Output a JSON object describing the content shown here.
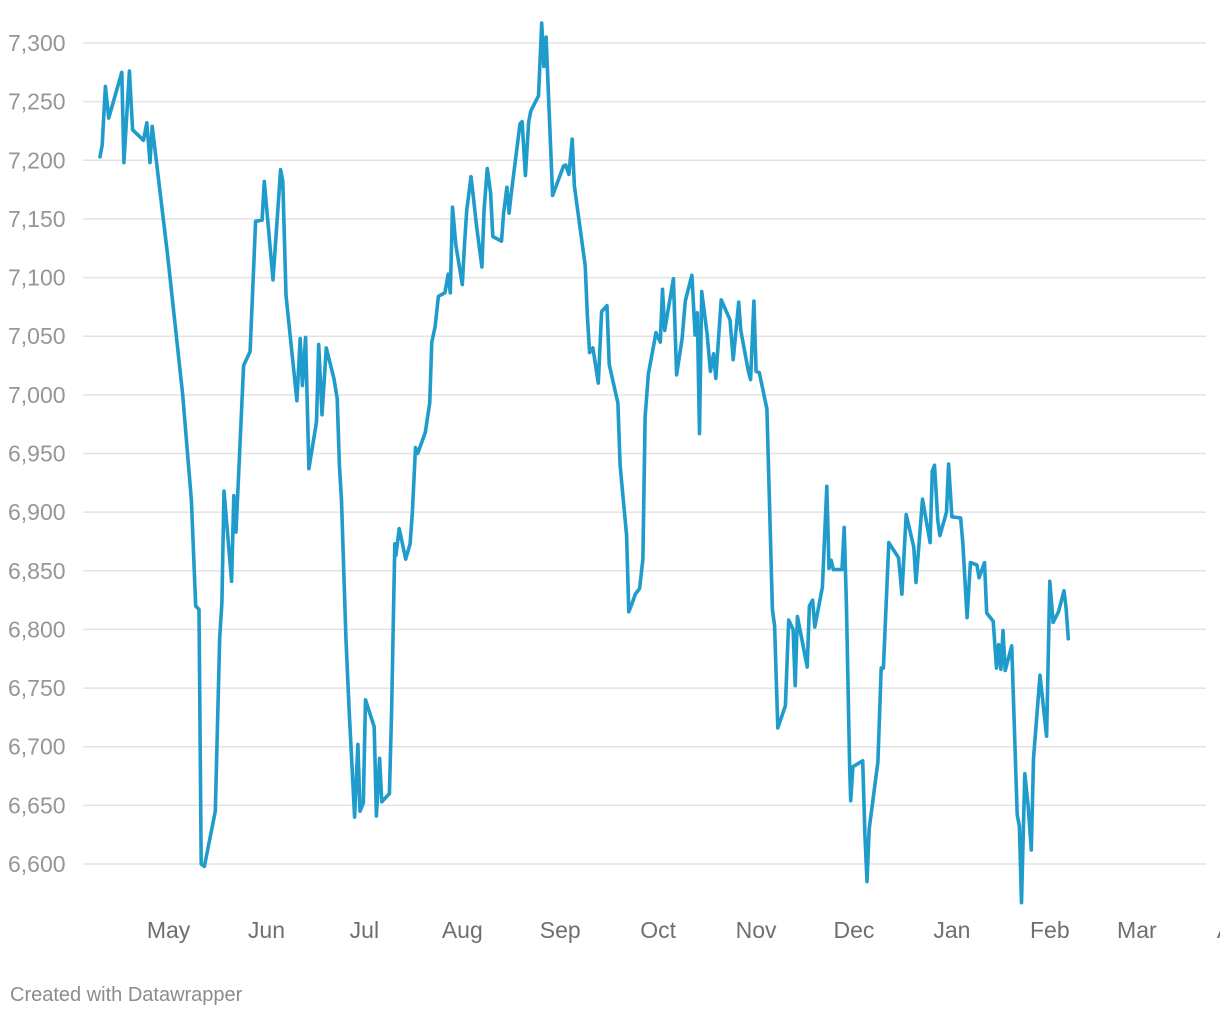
{
  "credit": "Created with Datawrapper",
  "colors": {
    "line": "#1f9ccb",
    "grid": "#e3e3e3",
    "tick_text": "#969696",
    "month_text": "#6f6f6f"
  },
  "chart_data": {
    "type": "line",
    "title": "",
    "xlabel": "",
    "ylabel": "",
    "ylim": [
      6570,
      7320
    ],
    "grid": true,
    "y_ticks": [
      {
        "value": 7300,
        "label": "7,300"
      },
      {
        "value": 7250,
        "label": "7,250"
      },
      {
        "value": 7200,
        "label": "7,200"
      },
      {
        "value": 7150,
        "label": "7,150"
      },
      {
        "value": 7100,
        "label": "7,100"
      },
      {
        "value": 7050,
        "label": "7,050"
      },
      {
        "value": 7000,
        "label": "7,000"
      },
      {
        "value": 6950,
        "label": "6,950"
      },
      {
        "value": 6900,
        "label": "6,900"
      },
      {
        "value": 6850,
        "label": "6,850"
      },
      {
        "value": 6800,
        "label": "6,800"
      },
      {
        "value": 6750,
        "label": "6,750"
      },
      {
        "value": 6700,
        "label": "6,700"
      },
      {
        "value": 6650,
        "label": "6,650"
      },
      {
        "value": 6600,
        "label": "6,600"
      }
    ],
    "x_ticks": [
      {
        "label": "May",
        "pos": 0.063
      },
      {
        "label": "Jun",
        "pos": 0.153
      },
      {
        "label": "Jul",
        "pos": 0.243
      },
      {
        "label": "Aug",
        "pos": 0.333
      },
      {
        "label": "Sep",
        "pos": 0.423
      },
      {
        "label": "Oct",
        "pos": 0.513
      },
      {
        "label": "Nov",
        "pos": 0.603
      },
      {
        "label": "Dec",
        "pos": 0.693
      },
      {
        "label": "Jan",
        "pos": 0.783
      },
      {
        "label": "Feb",
        "pos": 0.873
      },
      {
        "label": "Mar",
        "pos": 0.953
      },
      {
        "label": "Apr",
        "pos": 1.043
      }
    ],
    "series": [
      {
        "points": [
          [
            0.0,
            7203
          ],
          [
            0.002,
            7213
          ],
          [
            0.005,
            7263
          ],
          [
            0.008,
            7236
          ],
          [
            0.02,
            7275
          ],
          [
            0.022,
            7198
          ],
          [
            0.027,
            7276
          ],
          [
            0.03,
            7226
          ],
          [
            0.04,
            7217
          ],
          [
            0.043,
            7232
          ],
          [
            0.046,
            7198
          ],
          [
            0.048,
            7229
          ],
          [
            0.062,
            7120
          ],
          [
            0.076,
            7000
          ],
          [
            0.084,
            6910
          ],
          [
            0.088,
            6820
          ],
          [
            0.091,
            6817
          ],
          [
            0.093,
            6600
          ],
          [
            0.096,
            6598
          ],
          [
            0.106,
            6645
          ],
          [
            0.11,
            6793
          ],
          [
            0.112,
            6823
          ],
          [
            0.114,
            6918
          ],
          [
            0.121,
            6841
          ],
          [
            0.123,
            6914
          ],
          [
            0.125,
            6883
          ],
          [
            0.132,
            7025
          ],
          [
            0.138,
            7037
          ],
          [
            0.143,
            7148
          ],
          [
            0.149,
            7149
          ],
          [
            0.151,
            7182
          ],
          [
            0.159,
            7098
          ],
          [
            0.166,
            7192
          ],
          [
            0.168,
            7182
          ],
          [
            0.171,
            7085
          ],
          [
            0.181,
            6995
          ],
          [
            0.184,
            7048
          ],
          [
            0.186,
            7008
          ],
          [
            0.189,
            7049
          ],
          [
            0.192,
            6937
          ],
          [
            0.199,
            6977
          ],
          [
            0.201,
            7043
          ],
          [
            0.204,
            6983
          ],
          [
            0.208,
            7040
          ],
          [
            0.215,
            7014
          ],
          [
            0.218,
            6997
          ],
          [
            0.22,
            6940
          ],
          [
            0.222,
            6910
          ],
          [
            0.226,
            6793
          ],
          [
            0.229,
            6730
          ],
          [
            0.234,
            6640
          ],
          [
            0.237,
            6702
          ],
          [
            0.239,
            6645
          ],
          [
            0.242,
            6652
          ],
          [
            0.244,
            6740
          ],
          [
            0.252,
            6717
          ],
          [
            0.254,
            6641
          ],
          [
            0.257,
            6690
          ],
          [
            0.259,
            6653
          ],
          [
            0.266,
            6660
          ],
          [
            0.268,
            6730
          ],
          [
            0.271,
            6873
          ],
          [
            0.272,
            6863
          ],
          [
            0.275,
            6886
          ],
          [
            0.281,
            6860
          ],
          [
            0.285,
            6873
          ],
          [
            0.287,
            6899
          ],
          [
            0.29,
            6955
          ],
          [
            0.292,
            6950
          ],
          [
            0.299,
            6968
          ],
          [
            0.303,
            6993
          ],
          [
            0.305,
            7045
          ],
          [
            0.308,
            7058
          ],
          [
            0.311,
            7084
          ],
          [
            0.317,
            7087
          ],
          [
            0.32,
            7103
          ],
          [
            0.322,
            7087
          ],
          [
            0.324,
            7160
          ],
          [
            0.327,
            7128
          ],
          [
            0.333,
            7094
          ],
          [
            0.335,
            7128
          ],
          [
            0.337,
            7157
          ],
          [
            0.341,
            7186
          ],
          [
            0.343,
            7170
          ],
          [
            0.346,
            7145
          ],
          [
            0.351,
            7109
          ],
          [
            0.353,
            7158
          ],
          [
            0.356,
            7193
          ],
          [
            0.359,
            7172
          ],
          [
            0.361,
            7135
          ],
          [
            0.369,
            7131
          ],
          [
            0.371,
            7155
          ],
          [
            0.374,
            7177
          ],
          [
            0.376,
            7155
          ],
          [
            0.378,
            7172
          ],
          [
            0.386,
            7231
          ],
          [
            0.388,
            7233
          ],
          [
            0.391,
            7187
          ],
          [
            0.394,
            7233
          ],
          [
            0.396,
            7242
          ],
          [
            0.403,
            7255
          ],
          [
            0.406,
            7317
          ],
          [
            0.408,
            7280
          ],
          [
            0.41,
            7305
          ],
          [
            0.416,
            7170
          ],
          [
            0.426,
            7195
          ],
          [
            0.428,
            7196
          ],
          [
            0.431,
            7188
          ],
          [
            0.434,
            7218
          ],
          [
            0.436,
            7178
          ],
          [
            0.446,
            7110
          ],
          [
            0.448,
            7067
          ],
          [
            0.45,
            7036
          ],
          [
            0.453,
            7040
          ],
          [
            0.458,
            7010
          ],
          [
            0.461,
            7071
          ],
          [
            0.466,
            7076
          ],
          [
            0.468,
            7026
          ],
          [
            0.476,
            6993
          ],
          [
            0.478,
            6940
          ],
          [
            0.484,
            6880
          ],
          [
            0.486,
            6815
          ],
          [
            0.489,
            6822
          ],
          [
            0.492,
            6830
          ],
          [
            0.496,
            6835
          ],
          [
            0.499,
            6860
          ],
          [
            0.501,
            6981
          ],
          [
            0.504,
            7018
          ],
          [
            0.511,
            7053
          ],
          [
            0.515,
            7045
          ],
          [
            0.517,
            7090
          ],
          [
            0.519,
            7055
          ],
          [
            0.527,
            7099
          ],
          [
            0.53,
            7017
          ],
          [
            0.535,
            7048
          ],
          [
            0.538,
            7080
          ],
          [
            0.544,
            7102
          ],
          [
            0.547,
            7051
          ],
          [
            0.549,
            7070
          ],
          [
            0.551,
            6967
          ],
          [
            0.553,
            7088
          ],
          [
            0.558,
            7052
          ],
          [
            0.561,
            7020
          ],
          [
            0.564,
            7035
          ],
          [
            0.566,
            7014
          ],
          [
            0.571,
            7081
          ],
          [
            0.579,
            7064
          ],
          [
            0.582,
            7030
          ],
          [
            0.587,
            7079
          ],
          [
            0.589,
            7055
          ],
          [
            0.596,
            7020
          ],
          [
            0.598,
            7013
          ],
          [
            0.601,
            7080
          ],
          [
            0.603,
            7020
          ],
          [
            0.606,
            7019
          ],
          [
            0.613,
            6988
          ],
          [
            0.618,
            6817
          ],
          [
            0.62,
            6803
          ],
          [
            0.623,
            6716
          ],
          [
            0.63,
            6735
          ],
          [
            0.633,
            6808
          ],
          [
            0.637,
            6800
          ],
          [
            0.639,
            6752
          ],
          [
            0.641,
            6811
          ],
          [
            0.65,
            6768
          ],
          [
            0.652,
            6820
          ],
          [
            0.655,
            6825
          ],
          [
            0.657,
            6802
          ],
          [
            0.664,
            6836
          ],
          [
            0.668,
            6922
          ],
          [
            0.67,
            6852
          ],
          [
            0.672,
            6859
          ],
          [
            0.674,
            6851
          ],
          [
            0.682,
            6851
          ],
          [
            0.684,
            6887
          ],
          [
            0.686,
            6822
          ],
          [
            0.689,
            6684
          ],
          [
            0.69,
            6654
          ],
          [
            0.692,
            6683
          ],
          [
            0.701,
            6688
          ],
          [
            0.703,
            6625
          ],
          [
            0.705,
            6585
          ],
          [
            0.707,
            6630
          ],
          [
            0.715,
            6687
          ],
          [
            0.718,
            6767
          ],
          [
            0.72,
            6767
          ],
          [
            0.725,
            6874
          ],
          [
            0.734,
            6861
          ],
          [
            0.737,
            6830
          ],
          [
            0.741,
            6898
          ],
          [
            0.748,
            6870
          ],
          [
            0.75,
            6840
          ],
          [
            0.756,
            6911
          ],
          [
            0.763,
            6874
          ],
          [
            0.765,
            6935
          ],
          [
            0.767,
            6940
          ],
          [
            0.77,
            6893
          ],
          [
            0.772,
            6880
          ],
          [
            0.778,
            6900
          ],
          [
            0.78,
            6941
          ],
          [
            0.783,
            6896
          ],
          [
            0.791,
            6895
          ],
          [
            0.793,
            6874
          ],
          [
            0.797,
            6810
          ],
          [
            0.8,
            6857
          ],
          [
            0.806,
            6855
          ],
          [
            0.808,
            6844
          ],
          [
            0.813,
            6857
          ],
          [
            0.815,
            6814
          ],
          [
            0.821,
            6807
          ],
          [
            0.824,
            6767
          ],
          [
            0.826,
            6787
          ],
          [
            0.828,
            6766
          ],
          [
            0.83,
            6799
          ],
          [
            0.832,
            6765
          ],
          [
            0.838,
            6786
          ],
          [
            0.843,
            6642
          ],
          [
            0.845,
            6632
          ],
          [
            0.847,
            6567
          ],
          [
            0.85,
            6677
          ],
          [
            0.853,
            6650
          ],
          [
            0.856,
            6612
          ],
          [
            0.858,
            6690
          ],
          [
            0.864,
            6761
          ],
          [
            0.87,
            6709
          ],
          [
            0.873,
            6841
          ],
          [
            0.876,
            6806
          ],
          [
            0.881,
            6815
          ],
          [
            0.886,
            6833
          ],
          [
            0.888,
            6818
          ],
          [
            0.89,
            6792
          ]
        ]
      }
    ]
  }
}
